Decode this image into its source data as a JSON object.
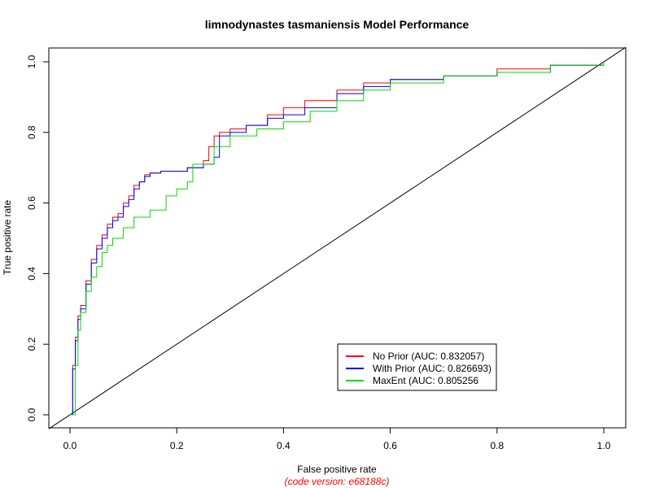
{
  "chart_data": {
    "type": "line",
    "title": "limnodynastes tasmaniensis Model Performance",
    "xlabel": "False positive rate",
    "ylabel": "True positive rate",
    "xlim": [
      0,
      1
    ],
    "ylim": [
      0,
      1
    ],
    "x_ticks": [
      "0.0",
      "0.2",
      "0.4",
      "0.6",
      "0.8",
      "1.0"
    ],
    "y_ticks": [
      "0.0",
      "0.2",
      "0.4",
      "0.6",
      "0.8",
      "1.0"
    ],
    "grid": false,
    "legend_position": "bottom-right",
    "footnote": "(code version: e68188c)",
    "reference_line": {
      "x": [
        0,
        1
      ],
      "y": [
        0,
        1
      ],
      "color": "#000000"
    },
    "series": [
      {
        "name": "No Prior (AUC: 0.832057)",
        "color": "#ff0000",
        "x": [
          0.0,
          0.005,
          0.01,
          0.015,
          0.02,
          0.03,
          0.04,
          0.05,
          0.06,
          0.07,
          0.08,
          0.09,
          0.1,
          0.11,
          0.12,
          0.13,
          0.14,
          0.15,
          0.17,
          0.2,
          0.22,
          0.25,
          0.26,
          0.27,
          0.28,
          0.3,
          0.33,
          0.37,
          0.4,
          0.44,
          0.5,
          0.55,
          0.6,
          0.7,
          0.8,
          0.9,
          1.0
        ],
        "y": [
          0.0,
          0.14,
          0.22,
          0.28,
          0.31,
          0.38,
          0.44,
          0.48,
          0.51,
          0.54,
          0.56,
          0.57,
          0.6,
          0.62,
          0.65,
          0.66,
          0.68,
          0.685,
          0.69,
          0.69,
          0.7,
          0.72,
          0.76,
          0.79,
          0.8,
          0.81,
          0.82,
          0.85,
          0.87,
          0.89,
          0.92,
          0.94,
          0.95,
          0.96,
          0.98,
          0.99,
          1.0
        ]
      },
      {
        "name": "With Prior (AUC: 0.826693)",
        "color": "#0000ff",
        "x": [
          0.0,
          0.005,
          0.01,
          0.015,
          0.02,
          0.03,
          0.04,
          0.05,
          0.06,
          0.07,
          0.08,
          0.09,
          0.1,
          0.11,
          0.12,
          0.13,
          0.14,
          0.15,
          0.17,
          0.2,
          0.22,
          0.25,
          0.27,
          0.28,
          0.3,
          0.33,
          0.37,
          0.4,
          0.44,
          0.5,
          0.55,
          0.6,
          0.7,
          0.8,
          0.9,
          1.0
        ],
        "y": [
          0.0,
          0.13,
          0.21,
          0.27,
          0.3,
          0.37,
          0.43,
          0.47,
          0.5,
          0.53,
          0.55,
          0.56,
          0.59,
          0.61,
          0.64,
          0.66,
          0.675,
          0.685,
          0.69,
          0.69,
          0.7,
          0.71,
          0.73,
          0.79,
          0.8,
          0.82,
          0.84,
          0.85,
          0.87,
          0.91,
          0.93,
          0.95,
          0.96,
          0.97,
          0.99,
          1.0
        ]
      },
      {
        "name": "MaxEnt (AUC: 0.805256",
        "color": "#00dd00",
        "x": [
          0.0,
          0.01,
          0.015,
          0.02,
          0.03,
          0.04,
          0.05,
          0.06,
          0.07,
          0.08,
          0.1,
          0.12,
          0.15,
          0.18,
          0.2,
          0.22,
          0.23,
          0.27,
          0.3,
          0.35,
          0.4,
          0.45,
          0.5,
          0.55,
          0.6,
          0.7,
          0.8,
          0.9,
          1.0
        ],
        "y": [
          0.0,
          0.14,
          0.24,
          0.29,
          0.35,
          0.39,
          0.42,
          0.46,
          0.48,
          0.5,
          0.53,
          0.56,
          0.58,
          0.62,
          0.64,
          0.66,
          0.71,
          0.76,
          0.79,
          0.81,
          0.83,
          0.86,
          0.89,
          0.92,
          0.94,
          0.96,
          0.97,
          0.99,
          1.0
        ]
      }
    ]
  }
}
